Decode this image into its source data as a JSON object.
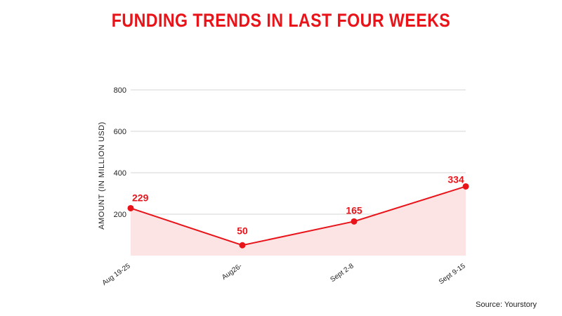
{
  "chart_data": {
    "type": "line",
    "title": "FUNDING TRENDS IN LAST FOUR WEEKS",
    "ylabel": "AMOUNT (IN MILLION USD)",
    "xlabel": "",
    "categories": [
      "Aug 19-25",
      "Aug26-",
      "Sept 2-8",
      "Sept 9-15"
    ],
    "series": [
      {
        "values": [
          229,
          50,
          165,
          334
        ]
      }
    ],
    "data_labels": [
      "229",
      "50",
      "165",
      "334"
    ],
    "ylim": [
      0,
      800
    ],
    "yticks": [
      200,
      400,
      600,
      800
    ],
    "grid": true,
    "area_fill": true,
    "colors": {
      "line": "#e8141a",
      "fill": "#fde4e4",
      "title": "#e8141a",
      "grid": "#d6d6d6"
    }
  },
  "source": "Source: Yourstory"
}
